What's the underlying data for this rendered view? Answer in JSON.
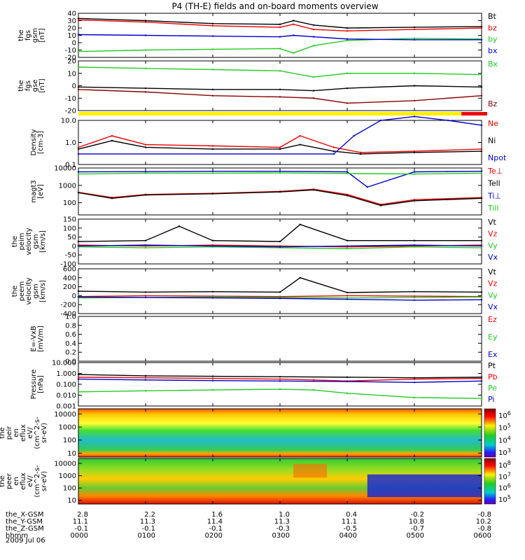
{
  "title": "P4 (TH-E) fields and on-board moments overview",
  "date_label": "2009 Jul 06",
  "colors": {
    "black": "#000000",
    "red": "#ee0000",
    "green": "#22cc22",
    "blue": "#0000cc",
    "yellow": "#ffee00",
    "darkred": "#880000"
  },
  "ephemeris": [
    {
      "label": "the_X-GSM",
      "values": [
        "2.8",
        "2.2",
        "1.6",
        "1.0",
        "0.4",
        "-0.2",
        "-0.8"
      ]
    },
    {
      "label": "the_Y-GSM",
      "values": [
        "11.1",
        "11.3",
        "11.4",
        "11.3",
        "11.1",
        "10.8",
        "10.2"
      ]
    },
    {
      "label": "the_Z-GSM",
      "values": [
        "-0.1",
        "-0.1",
        "-0.1",
        "-0.3",
        "-0.5",
        "-0.7",
        "-0.8"
      ]
    },
    {
      "label": "hhmm",
      "values": [
        "0000",
        "0100",
        "0200",
        "0300",
        "0400",
        "0500",
        "0600"
      ]
    }
  ],
  "chart_data": [
    {
      "type": "line",
      "ylabel": [
        "the",
        "fgs",
        "gsm",
        "[nT]"
      ],
      "ylim": [
        -20,
        40
      ],
      "yticks": [
        "40",
        "30",
        "20",
        "10",
        "0",
        "-10",
        "-20"
      ],
      "x_hours": [
        0,
        1,
        2,
        3,
        4,
        5,
        6
      ],
      "series": [
        {
          "name": "Bt",
          "color": "black",
          "x": [
            0,
            1,
            2,
            3,
            3.2,
            3.5,
            4,
            5,
            6
          ],
          "values": [
            33,
            30,
            26,
            25,
            30,
            24,
            20,
            21,
            22
          ]
        },
        {
          "name": "bz",
          "color": "red",
          "x": [
            0,
            1,
            2,
            3,
            3.2,
            3.5,
            4,
            5,
            6
          ],
          "values": [
            31,
            28,
            23,
            21,
            25,
            18,
            16,
            18,
            20
          ]
        },
        {
          "name": "by",
          "color": "green",
          "x": [
            0,
            1,
            2,
            3,
            3.2,
            3.5,
            4,
            5,
            6
          ],
          "values": [
            -12,
            -10,
            -9,
            -8,
            -14,
            -4,
            3,
            6,
            5
          ]
        },
        {
          "name": "bx",
          "color": "blue",
          "x": [
            0,
            1,
            2,
            3,
            3.2,
            3.5,
            4,
            5,
            6
          ],
          "values": [
            11,
            10,
            9,
            8,
            10,
            8,
            5,
            4,
            4
          ]
        }
      ]
    },
    {
      "type": "line",
      "ylabel": [
        "the",
        "fgs",
        "gse",
        "[nT]"
      ],
      "ylim": [
        -20,
        20
      ],
      "yticks": [
        "20",
        "10",
        "0",
        "-10",
        "-20"
      ],
      "series": [
        {
          "name": "Bx",
          "color": "green",
          "x": [
            0,
            1,
            2,
            3,
            3.5,
            4,
            5,
            6
          ],
          "values": [
            15,
            14,
            13,
            12,
            7,
            10,
            10,
            9
          ]
        },
        {
          "name": "Bz",
          "color": "darkred",
          "x": [
            0,
            1,
            2,
            3,
            3.5,
            4,
            5,
            6
          ],
          "values": [
            -3,
            -5,
            -8,
            -9,
            -10,
            -14,
            -12,
            -8
          ]
        },
        {
          "name": "",
          "color": "black",
          "x": [
            0,
            1,
            2,
            3,
            3.5,
            4,
            5,
            6
          ],
          "values": [
            -1,
            -2,
            -3,
            -3,
            -4,
            -2,
            0,
            -1
          ]
        }
      ]
    },
    {
      "type": "line",
      "ylabel": [
        "Density",
        "[cm-3]"
      ],
      "log": true,
      "ylim": [
        0.1,
        10
      ],
      "yticks": [
        "10.0",
        "1.0",
        "0.1"
      ],
      "series": [
        {
          "name": "Ne",
          "color": "red",
          "x": [
            0,
            0.5,
            1,
            2,
            3,
            3.3,
            3.8,
            4.2,
            5,
            6
          ],
          "values": [
            0.6,
            2.0,
            0.8,
            0.7,
            0.6,
            2.0,
            0.6,
            0.35,
            0.4,
            0.5
          ]
        },
        {
          "name": "Ni",
          "color": "black",
          "x": [
            0,
            0.5,
            1,
            2,
            3,
            3.3,
            3.8,
            4.2,
            5,
            6
          ],
          "values": [
            0.5,
            1.2,
            0.6,
            0.5,
            0.5,
            0.8,
            0.4,
            0.3,
            0.35,
            0.4
          ]
        },
        {
          "name": "Npot",
          "color": "blue",
          "x": [
            0,
            3.8,
            4.1,
            4.5,
            5,
            5.5,
            6
          ],
          "values": [
            0.3,
            0.3,
            2.0,
            10,
            15,
            10,
            6
          ]
        }
      ]
    },
    {
      "type": "line",
      "ylabel": [
        "magt3",
        "[eV]"
      ],
      "log": true,
      "ylim": [
        20,
        10000
      ],
      "yticks": [
        "10000",
        "1000",
        "100"
      ],
      "series": [
        {
          "name": "Te⊥",
          "color": "red",
          "x": [
            0,
            0.5,
            1,
            2,
            3,
            3.5,
            4,
            4.5,
            5,
            6
          ],
          "values": [
            400,
            200,
            300,
            350,
            450,
            600,
            300,
            80,
            150,
            200
          ]
        },
        {
          "name": "Tell",
          "color": "black",
          "x": [
            0,
            0.5,
            1,
            2,
            3,
            3.5,
            4,
            4.5,
            5,
            6
          ],
          "values": [
            380,
            180,
            280,
            330,
            420,
            550,
            260,
            70,
            130,
            180
          ]
        },
        {
          "name": "Ti⊥",
          "color": "blue",
          "x": [
            0,
            1,
            2,
            3,
            4,
            4.3,
            5,
            6
          ],
          "values": [
            6000,
            6200,
            6500,
            6500,
            6000,
            800,
            6000,
            6500
          ]
        },
        {
          "name": "Till",
          "color": "green",
          "x": [
            0,
            1,
            2,
            3,
            4,
            5,
            6
          ],
          "values": [
            4500,
            5000,
            5000,
            5200,
            4800,
            4500,
            5000
          ]
        }
      ]
    },
    {
      "type": "line",
      "ylabel": [
        "the",
        "peim",
        "velocity",
        "gsm",
        "[km/s]"
      ],
      "ylim": [
        -100,
        150
      ],
      "yticks": [
        "150",
        "100",
        "50",
        "0",
        "-50",
        "-100"
      ],
      "series": [
        {
          "name": "Vt",
          "color": "black",
          "x": [
            0,
            1,
            1.5,
            2,
            3,
            3.3,
            4,
            5,
            6
          ],
          "values": [
            25,
            30,
            110,
            30,
            25,
            120,
            30,
            30,
            30
          ]
        },
        {
          "name": "Vz",
          "color": "red",
          "x": [
            0,
            1,
            2,
            3,
            4,
            5,
            6
          ],
          "values": [
            5,
            0,
            5,
            0,
            -5,
            0,
            5
          ]
        },
        {
          "name": "Vy",
          "color": "green",
          "x": [
            0,
            1,
            2,
            3,
            4,
            5,
            6
          ],
          "values": [
            -5,
            -10,
            -5,
            -10,
            -15,
            -5,
            -10
          ]
        },
        {
          "name": "Vx",
          "color": "blue",
          "x": [
            0,
            1,
            2,
            3,
            4,
            5,
            6
          ],
          "values": [
            0,
            5,
            0,
            -5,
            0,
            5,
            0
          ]
        }
      ]
    },
    {
      "type": "line",
      "ylabel": [
        "the",
        "peem",
        "velocity",
        "gsm",
        "[km/s]"
      ],
      "ylim": [
        -400,
        600
      ],
      "yticks": [
        "600",
        "400",
        "200",
        "0",
        "-200",
        "-400"
      ],
      "series": [
        {
          "name": "Vt",
          "color": "black",
          "x": [
            0,
            1,
            2,
            3,
            3.3,
            4,
            5,
            6
          ],
          "values": [
            100,
            80,
            90,
            80,
            400,
            70,
            90,
            80
          ]
        },
        {
          "name": "Vz",
          "color": "red",
          "x": [
            0,
            1,
            2,
            3,
            4,
            5,
            6
          ],
          "values": [
            -20,
            0,
            -10,
            -20,
            0,
            -10,
            -20
          ]
        },
        {
          "name": "Vy",
          "color": "green",
          "x": [
            0,
            1,
            2,
            3,
            4,
            5,
            6
          ],
          "values": [
            -50,
            -40,
            -30,
            -40,
            -50,
            -40,
            -30
          ]
        },
        {
          "name": "Vx",
          "color": "blue",
          "x": [
            0,
            1,
            2,
            3,
            4,
            5,
            6
          ],
          "values": [
            -30,
            -40,
            -50,
            -60,
            -80,
            -100,
            -90
          ]
        }
      ]
    },
    {
      "type": "line",
      "ylabel": [
        "E=-VxB",
        "[mV/m]"
      ],
      "ylim": [
        0,
        1
      ],
      "yticks": [
        "1.0",
        "0.8",
        "0.6",
        "0.4",
        "0.2",
        "0.0"
      ],
      "series": [
        {
          "name": "Ez",
          "color": "red",
          "x": [],
          "values": []
        },
        {
          "name": "Ey",
          "color": "green",
          "x": [],
          "values": []
        },
        {
          "name": "Ex",
          "color": "blue",
          "x": [],
          "values": []
        }
      ]
    },
    {
      "type": "line",
      "ylabel": [
        "Pressure",
        "[nPa]"
      ],
      "log": true,
      "ylim": [
        0.001,
        10
      ],
      "yticks": [
        "10.000",
        "1.000",
        "0.100",
        "0.010",
        "0.001"
      ],
      "series": [
        {
          "name": "Pt",
          "color": "black",
          "x": [
            0,
            1,
            2,
            3,
            4,
            5,
            6
          ],
          "values": [
            0.8,
            0.6,
            0.55,
            0.5,
            0.45,
            0.4,
            0.45
          ]
        },
        {
          "name": "Pb",
          "color": "red",
          "x": [
            0,
            1,
            2,
            3,
            3.5,
            4,
            5,
            6
          ],
          "values": [
            0.45,
            0.4,
            0.35,
            0.3,
            0.25,
            0.2,
            0.3,
            0.35
          ]
        },
        {
          "name": "Pe",
          "color": "green",
          "x": [
            0,
            1,
            2,
            3,
            3.5,
            4,
            5,
            6
          ],
          "values": [
            0.02,
            0.025,
            0.03,
            0.035,
            0.03,
            0.015,
            0.006,
            0.005
          ]
        },
        {
          "name": "Pi",
          "color": "blue",
          "x": [
            0,
            1,
            2,
            3,
            4,
            5,
            6
          ],
          "values": [
            0.3,
            0.25,
            0.22,
            0.2,
            0.18,
            0.15,
            0.2
          ]
        }
      ]
    },
    {
      "type": "heatmap",
      "ylabel": [
        "the",
        "peir",
        "en",
        "eflux",
        "eV/",
        "(cm^2-s-",
        "sr-eV)"
      ],
      "log": true,
      "ylim": [
        5,
        25000
      ],
      "yticks": [
        "10000",
        "1000",
        "100",
        "10"
      ],
      "colorbar_ticks": [
        "10^6",
        "10^5",
        "10^4",
        "10^3"
      ]
    },
    {
      "type": "heatmap",
      "ylabel": [
        "the",
        "peer",
        "en",
        "eflux",
        "eV/",
        "(cm^2-s-",
        "sr-eV)"
      ],
      "log": true,
      "ylim": [
        5,
        25000
      ],
      "yticks": [
        "10000",
        "1000",
        "100",
        "10"
      ],
      "colorbar_ticks": [
        "10^8",
        "10^7",
        "10^6",
        "10^5"
      ]
    }
  ]
}
